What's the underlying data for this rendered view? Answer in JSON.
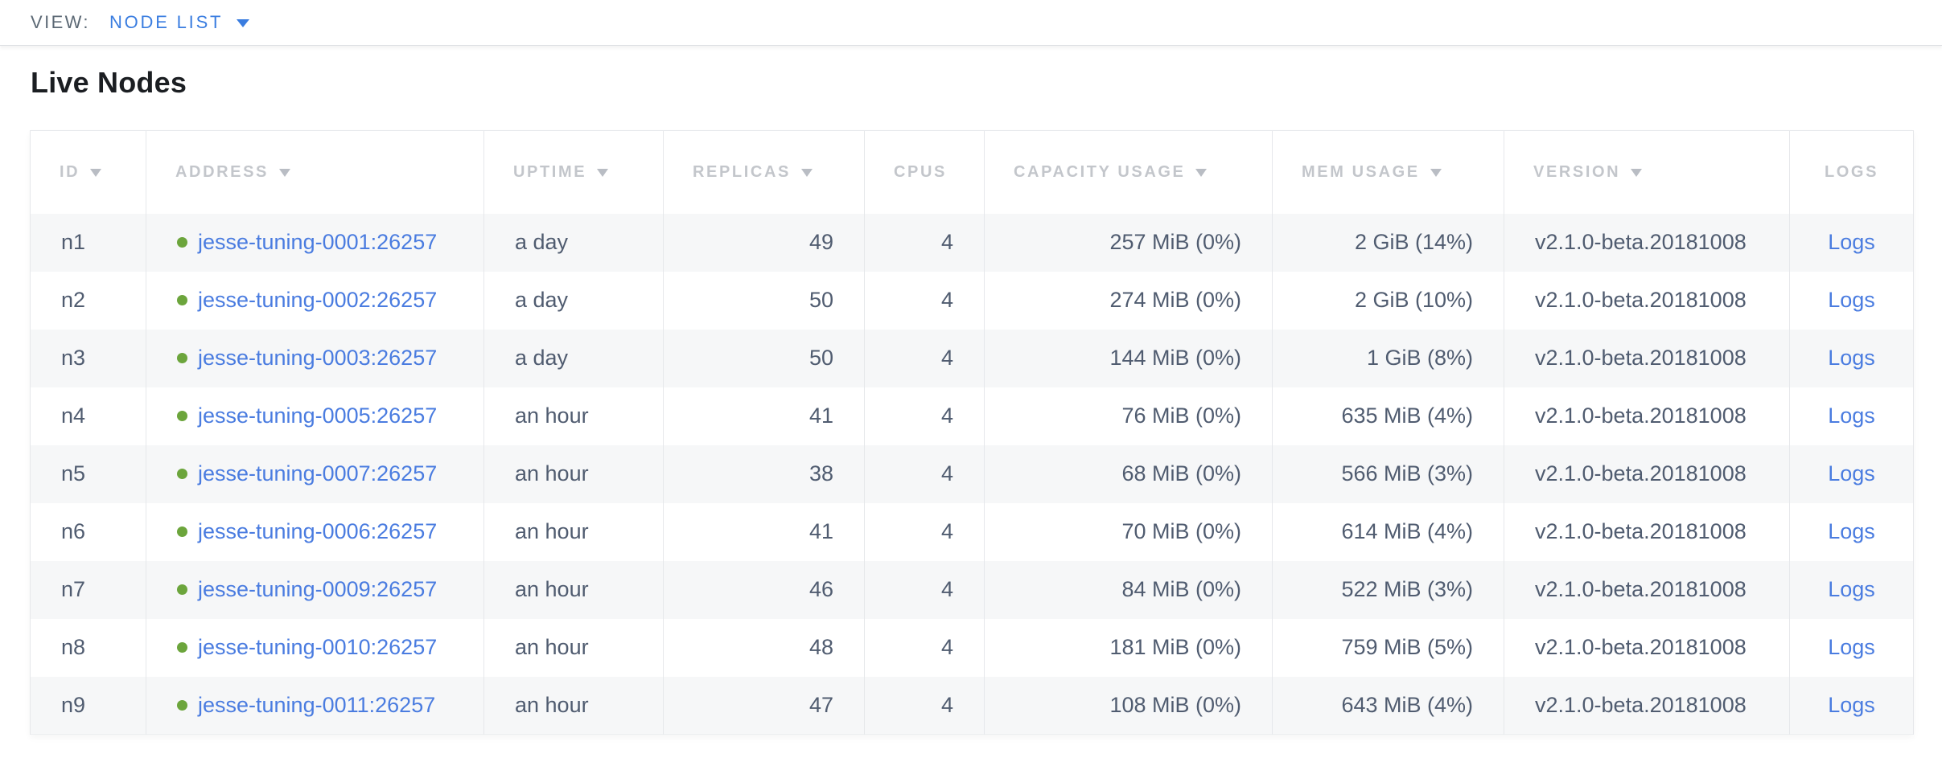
{
  "view_bar": {
    "label": "VIEW:",
    "selected": "NODE LIST"
  },
  "page": {
    "title": "Live Nodes"
  },
  "table": {
    "columns": [
      {
        "key": "id",
        "label": "ID",
        "sortable": true
      },
      {
        "key": "address",
        "label": "ADDRESS",
        "sortable": true
      },
      {
        "key": "uptime",
        "label": "UPTIME",
        "sortable": true
      },
      {
        "key": "replicas",
        "label": "REPLICAS",
        "sortable": true
      },
      {
        "key": "cpus",
        "label": "CPUS",
        "sortable": false
      },
      {
        "key": "capacity_usage",
        "label": "CAPACITY USAGE",
        "sortable": true
      },
      {
        "key": "mem_usage",
        "label": "MEM USAGE",
        "sortable": true
      },
      {
        "key": "version",
        "label": "VERSION",
        "sortable": true
      },
      {
        "key": "logs",
        "label": "LOGS",
        "sortable": false
      }
    ],
    "rows": [
      {
        "id": "n1",
        "address": "jesse-tuning-0001:26257",
        "uptime": "a day",
        "replicas": "49",
        "cpus": "4",
        "capacity_usage": "257 MiB (0%)",
        "mem_usage": "2 GiB (14%)",
        "version": "v2.1.0-beta.20181008",
        "logs": "Logs",
        "status": "live"
      },
      {
        "id": "n2",
        "address": "jesse-tuning-0002:26257",
        "uptime": "a day",
        "replicas": "50",
        "cpus": "4",
        "capacity_usage": "274 MiB (0%)",
        "mem_usage": "2 GiB (10%)",
        "version": "v2.1.0-beta.20181008",
        "logs": "Logs",
        "status": "live"
      },
      {
        "id": "n3",
        "address": "jesse-tuning-0003:26257",
        "uptime": "a day",
        "replicas": "50",
        "cpus": "4",
        "capacity_usage": "144 MiB (0%)",
        "mem_usage": "1 GiB (8%)",
        "version": "v2.1.0-beta.20181008",
        "logs": "Logs",
        "status": "live"
      },
      {
        "id": "n4",
        "address": "jesse-tuning-0005:26257",
        "uptime": "an hour",
        "replicas": "41",
        "cpus": "4",
        "capacity_usage": "76 MiB (0%)",
        "mem_usage": "635 MiB (4%)",
        "version": "v2.1.0-beta.20181008",
        "logs": "Logs",
        "status": "live"
      },
      {
        "id": "n5",
        "address": "jesse-tuning-0007:26257",
        "uptime": "an hour",
        "replicas": "38",
        "cpus": "4",
        "capacity_usage": "68 MiB (0%)",
        "mem_usage": "566 MiB (3%)",
        "version": "v2.1.0-beta.20181008",
        "logs": "Logs",
        "status": "live"
      },
      {
        "id": "n6",
        "address": "jesse-tuning-0006:26257",
        "uptime": "an hour",
        "replicas": "41",
        "cpus": "4",
        "capacity_usage": "70 MiB (0%)",
        "mem_usage": "614 MiB (4%)",
        "version": "v2.1.0-beta.20181008",
        "logs": "Logs",
        "status": "live"
      },
      {
        "id": "n7",
        "address": "jesse-tuning-0009:26257",
        "uptime": "an hour",
        "replicas": "46",
        "cpus": "4",
        "capacity_usage": "84 MiB (0%)",
        "mem_usage": "522 MiB (3%)",
        "version": "v2.1.0-beta.20181008",
        "logs": "Logs",
        "status": "live"
      },
      {
        "id": "n8",
        "address": "jesse-tuning-0010:26257",
        "uptime": "an hour",
        "replicas": "48",
        "cpus": "4",
        "capacity_usage": "181 MiB (0%)",
        "mem_usage": "759 MiB (5%)",
        "version": "v2.1.0-beta.20181008",
        "logs": "Logs",
        "status": "live"
      },
      {
        "id": "n9",
        "address": "jesse-tuning-0011:26257",
        "uptime": "an hour",
        "replicas": "47",
        "cpus": "4",
        "capacity_usage": "108 MiB (0%)",
        "mem_usage": "643 MiB (4%)",
        "version": "v2.1.0-beta.20181008",
        "logs": "Logs",
        "status": "live"
      }
    ]
  },
  "colors": {
    "accent_blue": "#3a7de0",
    "link_blue": "#4a7ce0",
    "node_live_green": "#6ca53c"
  }
}
